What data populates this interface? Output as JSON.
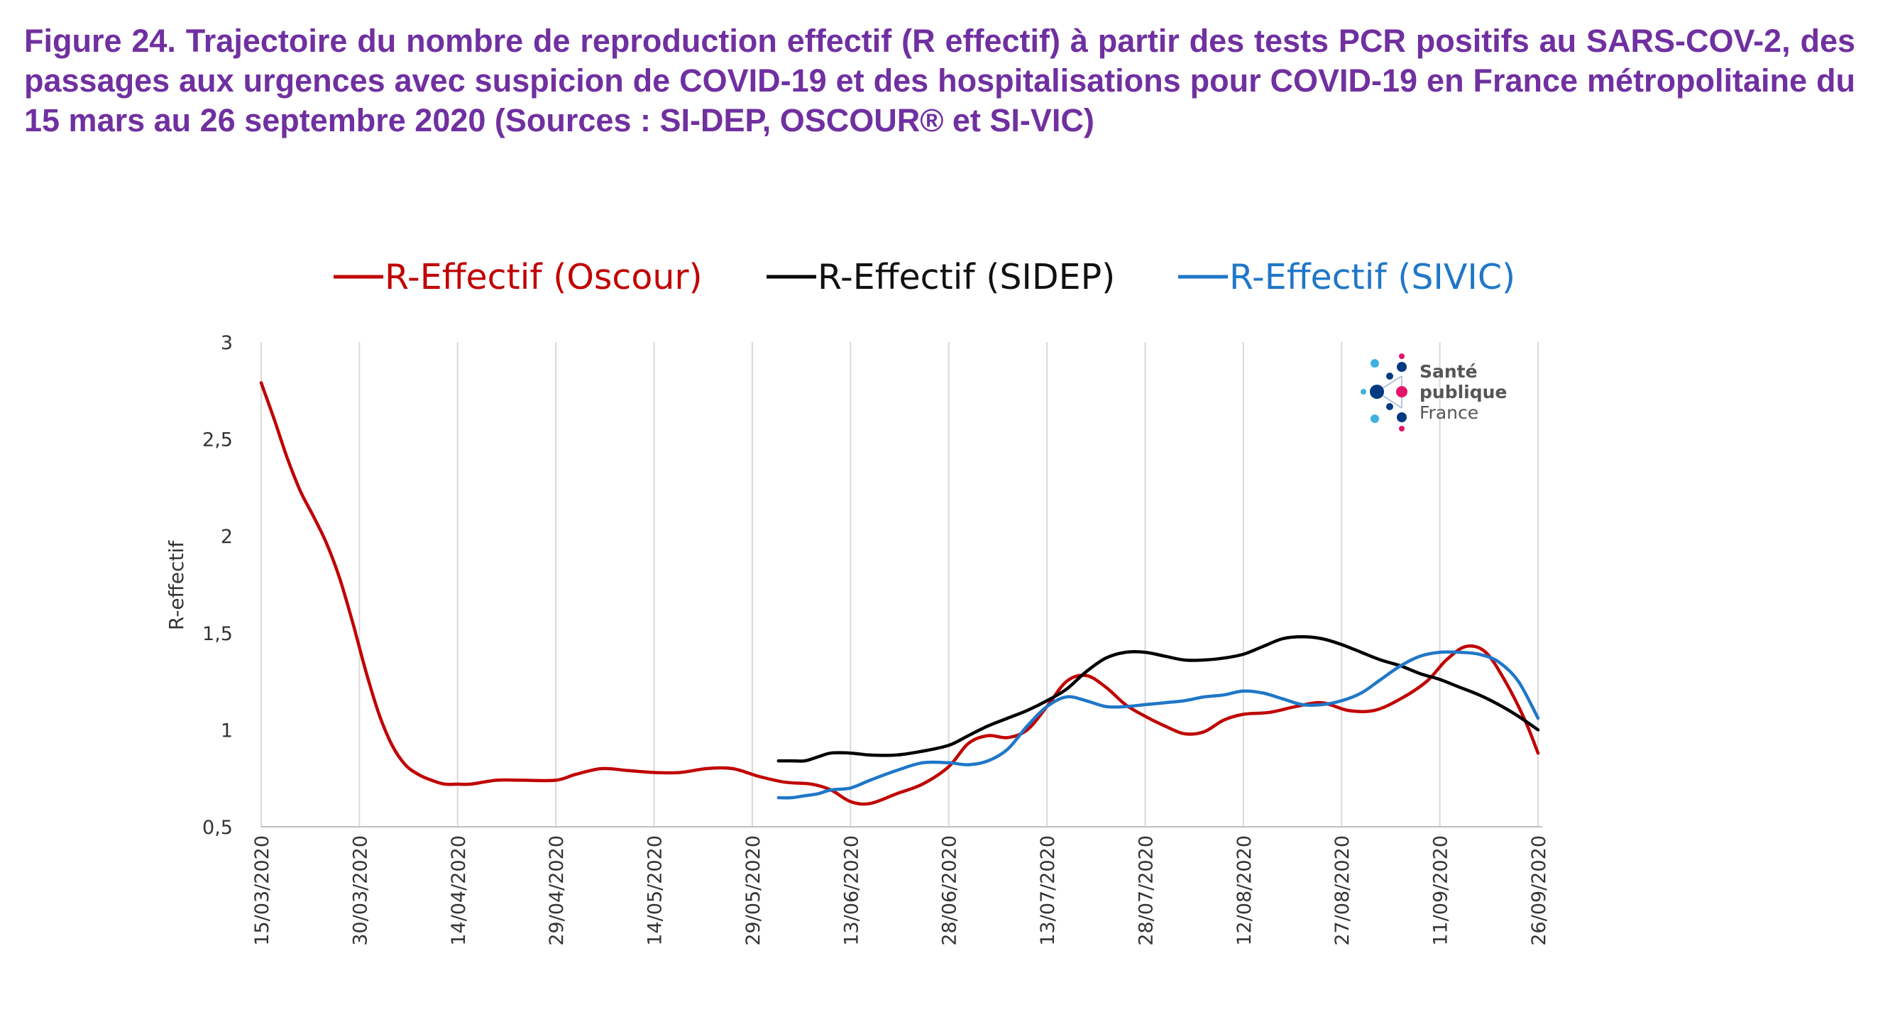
{
  "caption": "Figure 24. Trajectoire du nombre de reproduction effectif (R effectif) à partir des tests PCR positifs au SARS-COV-2, des passages aux urgences avec suspicion de COVID-19 et des hospitalisations pour COVID-19 en France métropolitaine du 15 mars au 26 septembre 2020 (Sources : SI-DEP, OSCOUR® et SI-VIC)",
  "logo": {
    "line1": "Santé",
    "line2": "publique",
    "line3": "France"
  },
  "chart_data": {
    "type": "line",
    "ylabel": "R-effectif",
    "xlabel": "",
    "ylim": [
      0.5,
      3
    ],
    "yticks": [
      0.5,
      1,
      1.5,
      2,
      2.5,
      3
    ],
    "ytick_labels": [
      "0,5",
      "1",
      "1,5",
      "2",
      "2,5",
      "3"
    ],
    "xtick_labels": [
      "15/03/2020",
      "30/03/2020",
      "14/04/2020",
      "29/04/2020",
      "14/05/2020",
      "29/05/2020",
      "13/06/2020",
      "28/06/2020",
      "13/07/2020",
      "28/07/2020",
      "12/08/2020",
      "27/08/2020",
      "11/09/2020",
      "26/09/2020"
    ],
    "grid": "vertical",
    "legend": "top",
    "series": [
      {
        "name": "R-Effectif (Oscour)",
        "color": "#c00000",
        "x": [
          "15/03/2020",
          "17/03/2020",
          "19/03/2020",
          "21/03/2020",
          "23/03/2020",
          "25/03/2020",
          "27/03/2020",
          "29/03/2020",
          "31/03/2020",
          "02/04/2020",
          "04/04/2020",
          "06/04/2020",
          "08/04/2020",
          "10/04/2020",
          "12/04/2020",
          "14/04/2020",
          "16/04/2020",
          "20/04/2020",
          "24/04/2020",
          "29/04/2020",
          "02/05/2020",
          "06/05/2020",
          "10/05/2020",
          "14/05/2020",
          "18/05/2020",
          "22/05/2020",
          "26/05/2020",
          "30/05/2020",
          "03/06/2020",
          "07/06/2020",
          "10/06/2020",
          "13/06/2020",
          "16/06/2020",
          "20/06/2020",
          "24/06/2020",
          "28/06/2020",
          "01/07/2020",
          "04/07/2020",
          "07/07/2020",
          "10/07/2020",
          "13/07/2020",
          "16/07/2020",
          "19/07/2020",
          "22/07/2020",
          "25/07/2020",
          "28/07/2020",
          "31/07/2020",
          "03/08/2020",
          "06/08/2020",
          "09/08/2020",
          "12/08/2020",
          "16/08/2020",
          "20/08/2020",
          "24/08/2020",
          "28/08/2020",
          "01/09/2020",
          "05/09/2020",
          "09/09/2020",
          "12/09/2020",
          "15/09/2020",
          "18/09/2020",
          "21/09/2020",
          "24/09/2020",
          "26/09/2020"
        ],
        "y": [
          2.79,
          2.6,
          2.4,
          2.23,
          2.1,
          1.96,
          1.78,
          1.55,
          1.3,
          1.08,
          0.92,
          0.82,
          0.77,
          0.74,
          0.72,
          0.72,
          0.72,
          0.74,
          0.74,
          0.74,
          0.77,
          0.8,
          0.79,
          0.78,
          0.78,
          0.8,
          0.8,
          0.76,
          0.73,
          0.72,
          0.69,
          0.63,
          0.62,
          0.67,
          0.72,
          0.81,
          0.93,
          0.97,
          0.96,
          1.0,
          1.12,
          1.25,
          1.28,
          1.22,
          1.13,
          1.07,
          1.02,
          0.98,
          0.99,
          1.05,
          1.08,
          1.09,
          1.12,
          1.14,
          1.1,
          1.1,
          1.16,
          1.25,
          1.36,
          1.43,
          1.4,
          1.25,
          1.05,
          0.88
        ]
      },
      {
        "name": "R-Effectif (SIDEP)",
        "color": "#000000",
        "x": [
          "02/06/2020",
          "04/06/2020",
          "06/06/2020",
          "08/06/2020",
          "10/06/2020",
          "13/06/2020",
          "16/06/2020",
          "20/06/2020",
          "24/06/2020",
          "28/06/2020",
          "01/07/2020",
          "04/07/2020",
          "07/07/2020",
          "10/07/2020",
          "13/07/2020",
          "16/07/2020",
          "19/07/2020",
          "22/07/2020",
          "25/07/2020",
          "28/07/2020",
          "31/07/2020",
          "03/08/2020",
          "06/08/2020",
          "09/08/2020",
          "12/08/2020",
          "15/08/2020",
          "18/08/2020",
          "21/08/2020",
          "24/08/2020",
          "27/08/2020",
          "30/08/2020",
          "02/09/2020",
          "05/09/2020",
          "08/09/2020",
          "11/09/2020",
          "14/09/2020",
          "17/09/2020",
          "20/09/2020",
          "23/09/2020",
          "26/09/2020"
        ],
        "y": [
          0.84,
          0.84,
          0.84,
          0.86,
          0.88,
          0.88,
          0.87,
          0.87,
          0.89,
          0.92,
          0.97,
          1.02,
          1.06,
          1.1,
          1.15,
          1.21,
          1.3,
          1.37,
          1.4,
          1.4,
          1.38,
          1.36,
          1.36,
          1.37,
          1.39,
          1.43,
          1.47,
          1.48,
          1.47,
          1.44,
          1.4,
          1.36,
          1.33,
          1.29,
          1.26,
          1.22,
          1.18,
          1.13,
          1.07,
          1.0
        ]
      },
      {
        "name": "R-Effectif (SIVIC)",
        "color": "#1f77c8",
        "x": [
          "02/06/2020",
          "04/06/2020",
          "06/06/2020",
          "08/06/2020",
          "10/06/2020",
          "13/06/2020",
          "16/06/2020",
          "20/06/2020",
          "24/06/2020",
          "28/06/2020",
          "01/07/2020",
          "04/07/2020",
          "07/07/2020",
          "10/07/2020",
          "13/07/2020",
          "16/07/2020",
          "19/07/2020",
          "22/07/2020",
          "25/07/2020",
          "28/07/2020",
          "31/07/2020",
          "03/08/2020",
          "06/08/2020",
          "09/08/2020",
          "12/08/2020",
          "15/08/2020",
          "18/08/2020",
          "21/08/2020",
          "24/08/2020",
          "27/08/2020",
          "30/08/2020",
          "02/09/2020",
          "05/09/2020",
          "08/09/2020",
          "11/09/2020",
          "14/09/2020",
          "17/09/2020",
          "20/09/2020",
          "23/09/2020",
          "26/09/2020"
        ],
        "y": [
          0.65,
          0.65,
          0.66,
          0.67,
          0.69,
          0.7,
          0.74,
          0.79,
          0.83,
          0.83,
          0.82,
          0.84,
          0.9,
          1.02,
          1.12,
          1.17,
          1.15,
          1.12,
          1.12,
          1.13,
          1.14,
          1.15,
          1.17,
          1.18,
          1.2,
          1.19,
          1.16,
          1.13,
          1.13,
          1.15,
          1.19,
          1.26,
          1.33,
          1.38,
          1.4,
          1.4,
          1.39,
          1.35,
          1.25,
          1.06
        ]
      }
    ]
  }
}
